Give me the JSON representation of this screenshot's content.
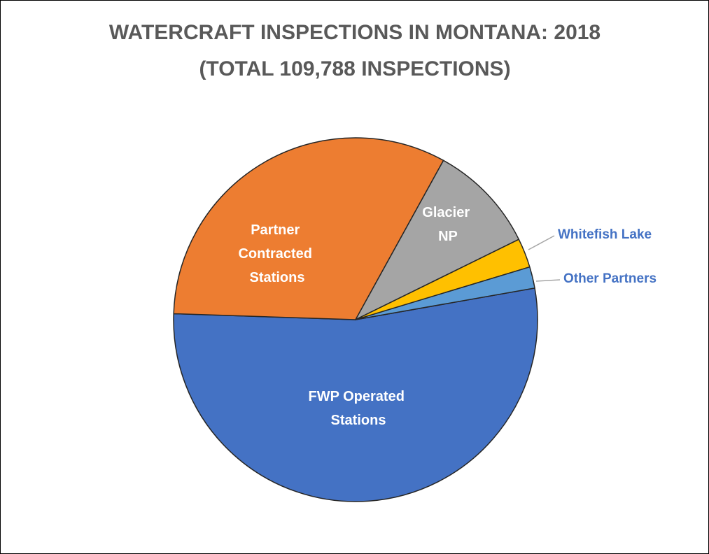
{
  "chart_data": {
    "type": "pie",
    "title": "WATERCRAFT INSPECTIONS IN MONTANA: 2018",
    "subtitle": "(TOTAL 109,788 INSPECTIONS)",
    "categories": [
      "FWP Operated Stations",
      "Partner Contracted Stations",
      "Glacier NP",
      "Whitefish Lake",
      "Other Partners"
    ],
    "values": [
      53.3,
      32.5,
      9.7,
      2.6,
      1.9
    ],
    "colors": [
      "#4472c4",
      "#ed7d31",
      "#a5a5a5",
      "#ffc000",
      "#5b9bd5"
    ],
    "start_angle": 80
  }
}
